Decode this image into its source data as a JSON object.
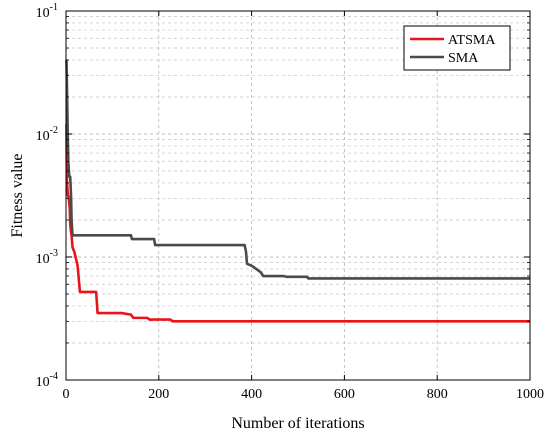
{
  "chart_data": {
    "type": "line",
    "xlabel": "Number of iterations",
    "ylabel": "Fitness value",
    "xlim": [
      0,
      1000
    ],
    "ylim": [
      0.0001,
      0.1
    ],
    "yscale": "log",
    "grid": true,
    "legend_position": "top-right",
    "x_ticks": [
      {
        "value": 0,
        "label": "0"
      },
      {
        "value": 200,
        "label": "200"
      },
      {
        "value": 400,
        "label": "400"
      },
      {
        "value": 600,
        "label": "600"
      },
      {
        "value": 800,
        "label": "800"
      },
      {
        "value": 1000,
        "label": "1000"
      }
    ],
    "y_ticks": [
      {
        "value": 0.0001,
        "base": "10",
        "exp": "-4"
      },
      {
        "value": 0.001,
        "base": "10",
        "exp": "-3"
      },
      {
        "value": 0.01,
        "base": "10",
        "exp": "-2"
      },
      {
        "value": 0.1,
        "base": "10",
        "exp": "-1"
      }
    ],
    "series": [
      {
        "name": "ATSMA",
        "color": "#e8141c",
        "points": [
          [
            1,
            0.012
          ],
          [
            2,
            0.0042
          ],
          [
            4,
            0.0032
          ],
          [
            6,
            0.003
          ],
          [
            8,
            0.0025
          ],
          [
            9,
            0.0019
          ],
          [
            10,
            0.0017
          ],
          [
            12,
            0.0015
          ],
          [
            14,
            0.0012
          ],
          [
            18,
            0.0011
          ],
          [
            22,
            0.00095
          ],
          [
            25,
            0.00085
          ],
          [
            30,
            0.00052
          ],
          [
            65,
            0.00052
          ],
          [
            68,
            0.00035
          ],
          [
            120,
            0.00035
          ],
          [
            140,
            0.00034
          ],
          [
            145,
            0.00032
          ],
          [
            175,
            0.00032
          ],
          [
            180,
            0.00031
          ],
          [
            225,
            0.00031
          ],
          [
            230,
            0.0003
          ],
          [
            1000,
            0.0003
          ]
        ]
      },
      {
        "name": "SMA",
        "color": "#4a4a4a",
        "points": [
          [
            1,
            0.04
          ],
          [
            2,
            0.025
          ],
          [
            3,
            0.015
          ],
          [
            4,
            0.009
          ],
          [
            5,
            0.006
          ],
          [
            7,
            0.0045
          ],
          [
            9,
            0.0045
          ],
          [
            10,
            0.0038
          ],
          [
            11,
            0.003
          ],
          [
            12,
            0.002
          ],
          [
            14,
            0.0015
          ],
          [
            140,
            0.0015
          ],
          [
            142,
            0.0014
          ],
          [
            190,
            0.0014
          ],
          [
            192,
            0.00125
          ],
          [
            385,
            0.00125
          ],
          [
            388,
            0.0011
          ],
          [
            390,
            0.00088
          ],
          [
            400,
            0.00085
          ],
          [
            410,
            0.0008
          ],
          [
            420,
            0.00075
          ],
          [
            425,
            0.0007
          ],
          [
            470,
            0.0007
          ],
          [
            475,
            0.00069
          ],
          [
            520,
            0.00069
          ],
          [
            522,
            0.00067
          ],
          [
            1000,
            0.00067
          ]
        ]
      }
    ]
  }
}
